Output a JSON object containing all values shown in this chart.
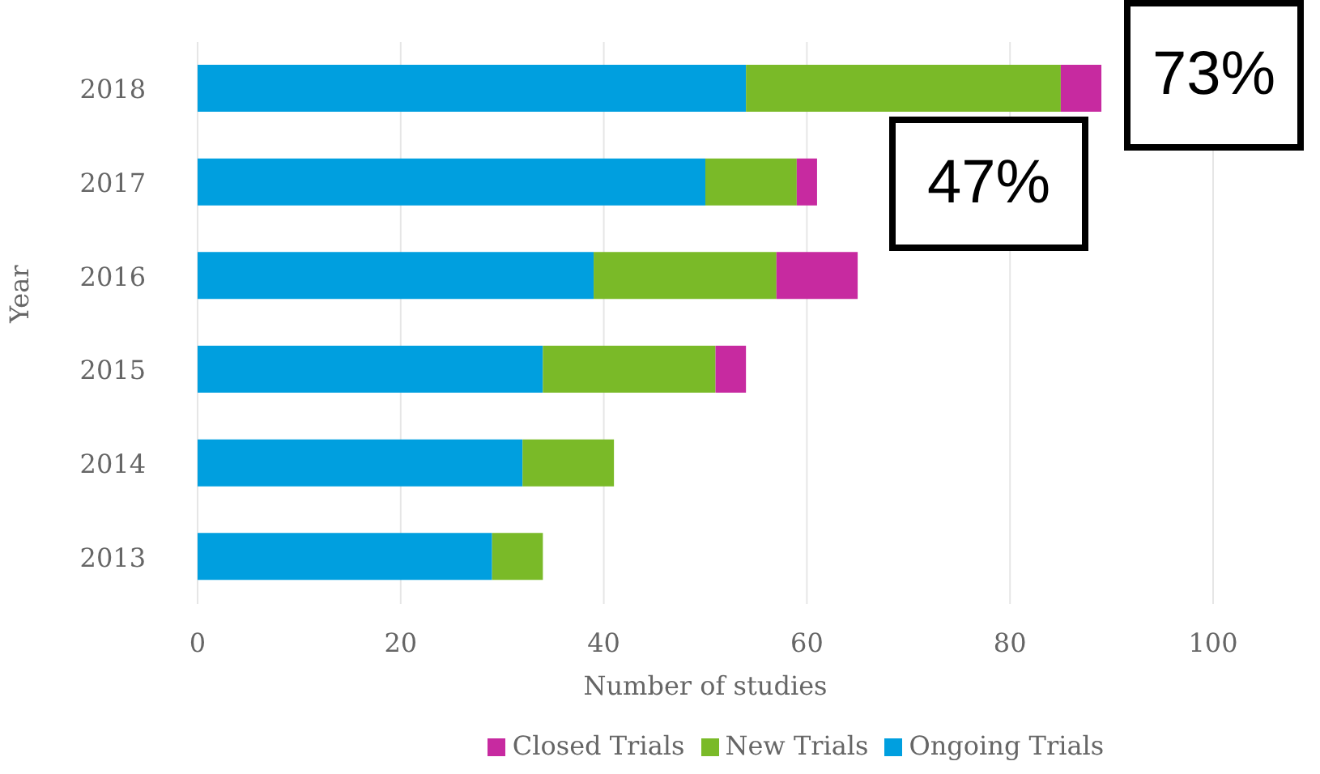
{
  "chart_data": {
    "type": "bar",
    "orientation": "horizontal",
    "stacked": true,
    "xlabel": "Number of studies",
    "ylabel": "Year",
    "categories": [
      "2018",
      "2017",
      "2016",
      "2015",
      "2014",
      "2013"
    ],
    "series": [
      {
        "name": "Ongoing Trials",
        "color": "#009fdf",
        "values": [
          54,
          50,
          39,
          34,
          32,
          29
        ]
      },
      {
        "name": "New Trials",
        "color": "#7aba28",
        "values": [
          31,
          9,
          18,
          17,
          9,
          5
        ]
      },
      {
        "name": "Closed Trials",
        "color": "#c72aa0",
        "values": [
          4,
          2,
          8,
          3,
          null,
          null
        ]
      }
    ],
    "xlim": [
      0,
      100
    ],
    "xticks": [
      0,
      20,
      40,
      60,
      80,
      100
    ],
    "grid": "x",
    "legend": "bottom",
    "annotations": [
      "73%",
      "47%"
    ]
  }
}
